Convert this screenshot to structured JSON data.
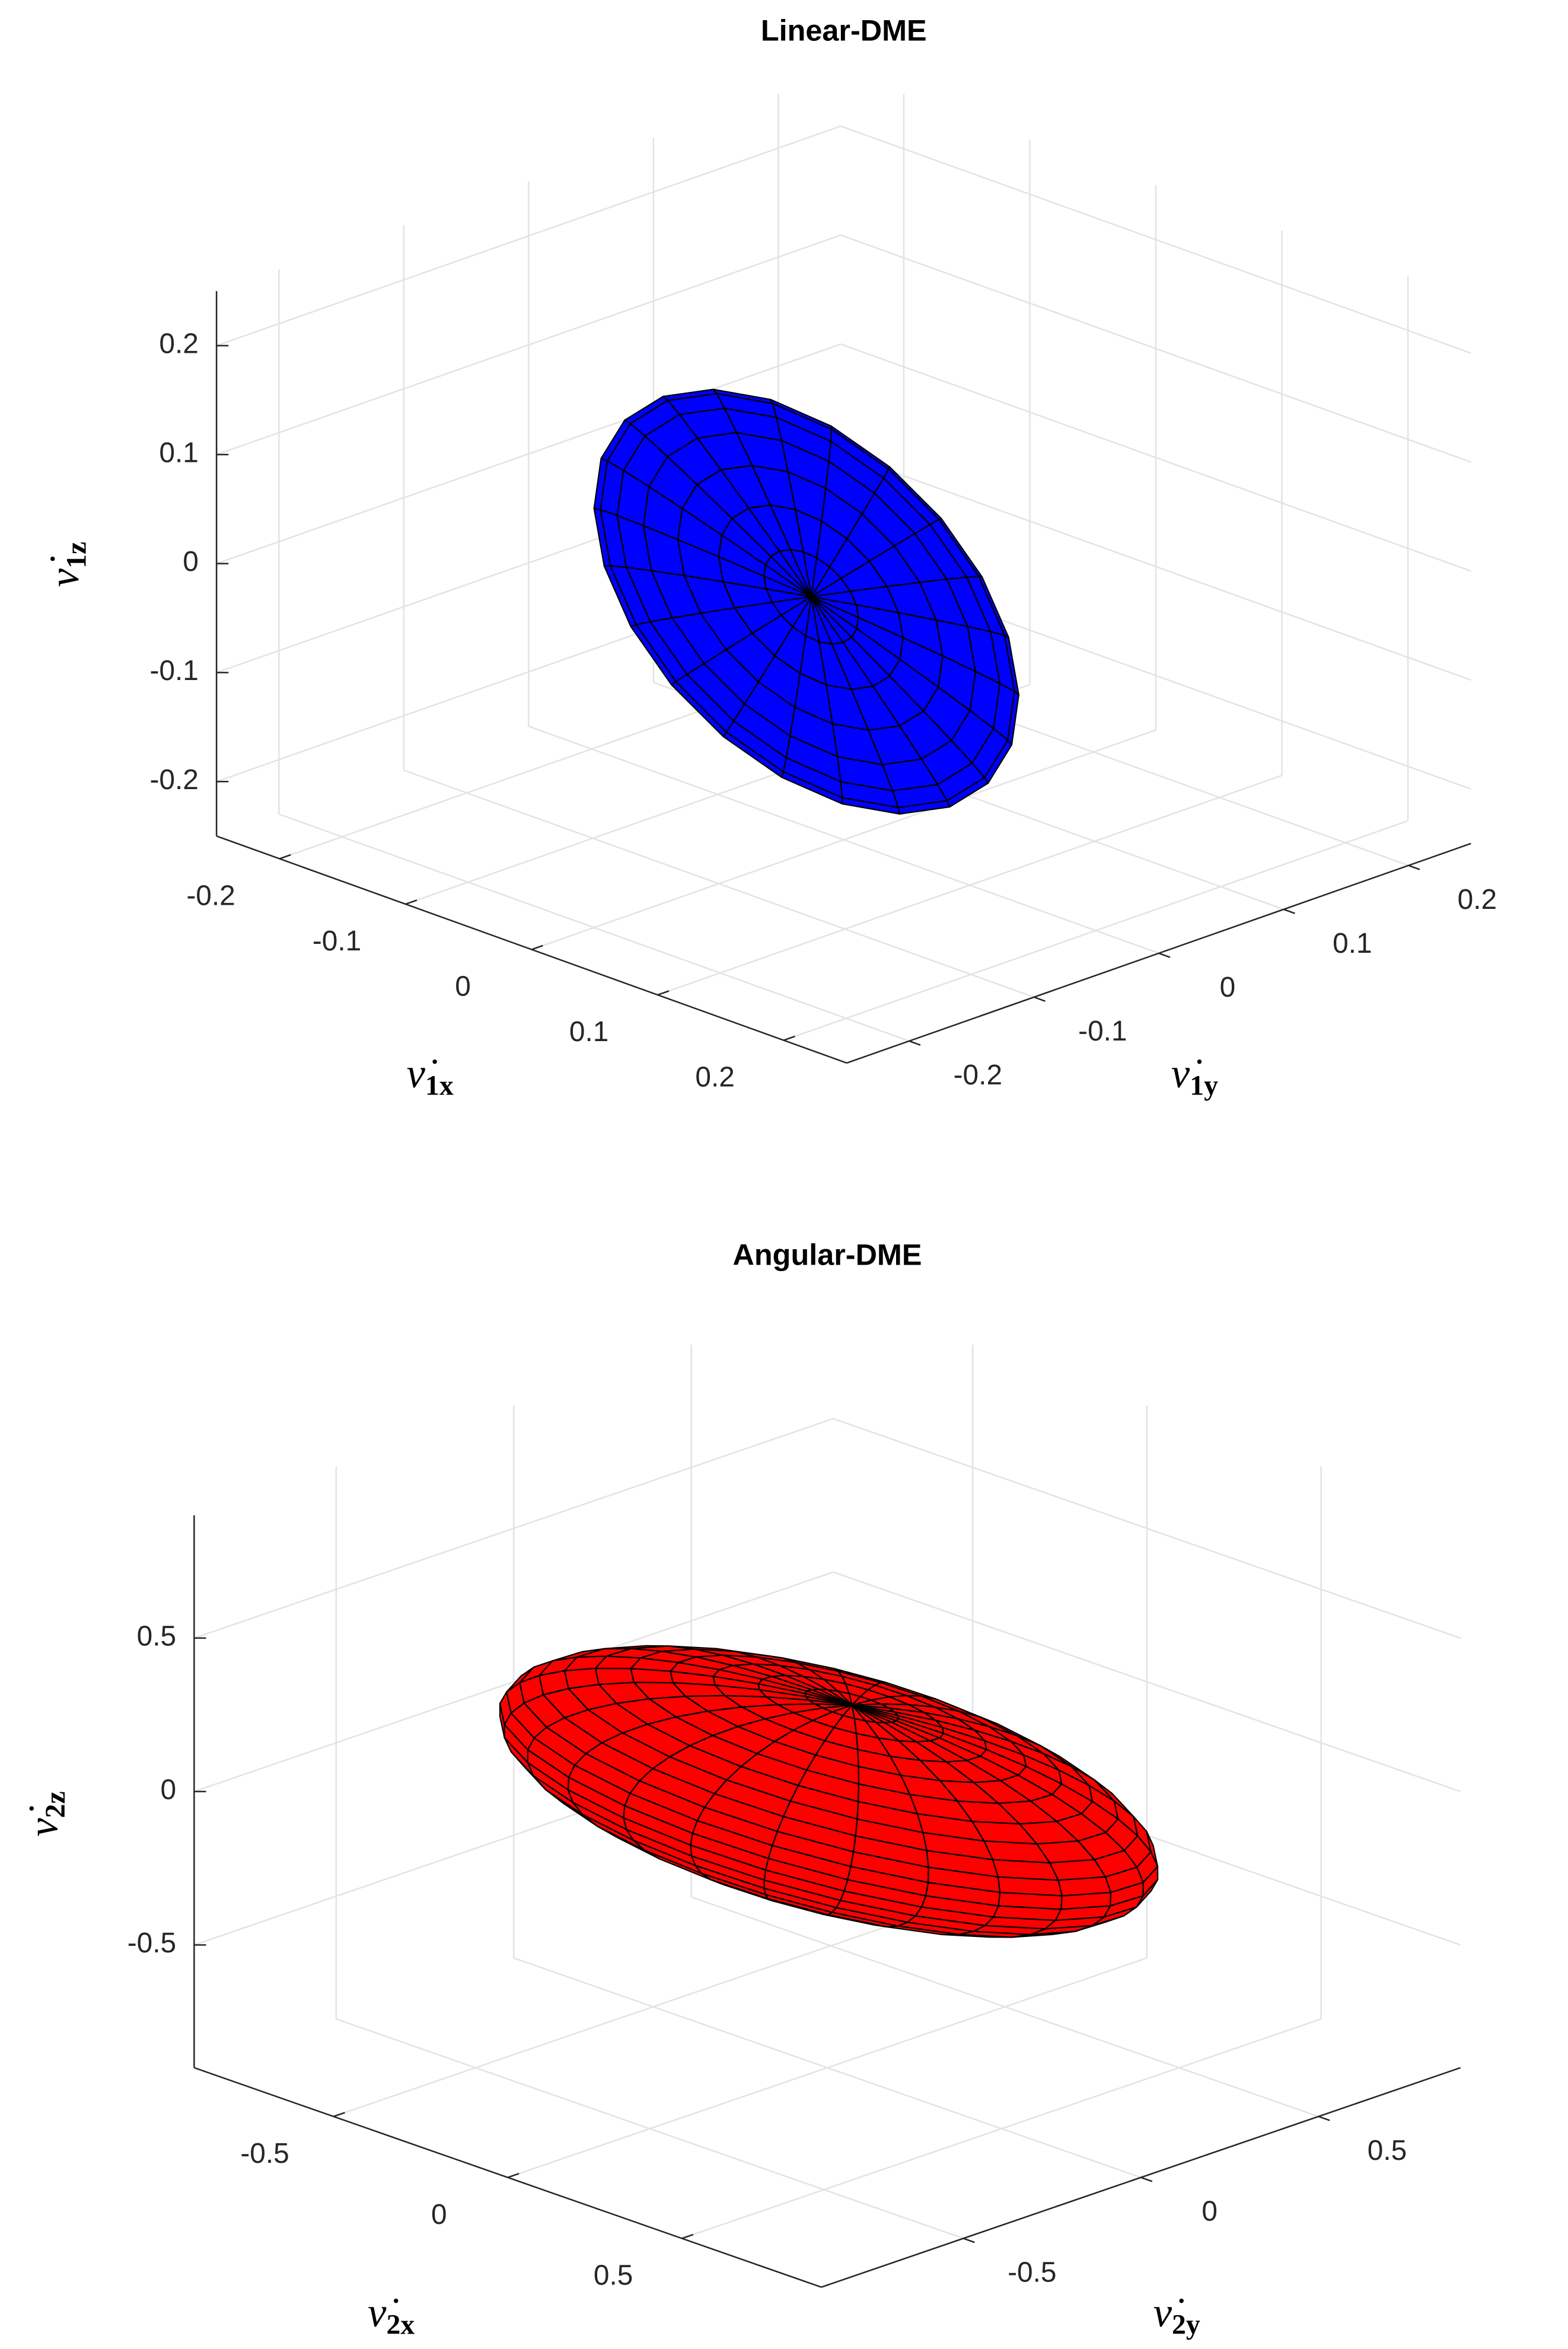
{
  "chart_data": [
    {
      "type": "surface",
      "title": "Linear-DME",
      "xlabel": {
        "base": "ν̇",
        "sub": "1x"
      },
      "ylabel": {
        "base": "ν̇",
        "sub": "1y"
      },
      "zlabel": {
        "base": "ν̇",
        "sub": "1z"
      },
      "xlim": [
        -0.25,
        0.25
      ],
      "ylim": [
        -0.25,
        0.25
      ],
      "zlim": [
        -0.25,
        0.25
      ],
      "xticks": [
        -0.2,
        -0.1,
        0,
        0.1,
        0.2
      ],
      "yticks": [
        -0.2,
        -0.1,
        0,
        0.1,
        0.2
      ],
      "zticks": [
        -0.2,
        -0.1,
        0,
        0.1,
        0.2
      ],
      "color": "#0000ff",
      "grid": true
    },
    {
      "type": "surface",
      "title": "Angular-DME",
      "xlabel": {
        "base": "ν̇",
        "sub": "2x"
      },
      "ylabel": {
        "base": "ν̇",
        "sub": "2y"
      },
      "zlabel": {
        "base": "ν̇",
        "sub": "2z"
      },
      "xlim": [
        -0.9,
        0.9
      ],
      "ylim": [
        -0.9,
        0.9
      ],
      "zlim": [
        -0.9,
        0.9
      ],
      "xticks": [
        -0.5,
        0,
        0.5
      ],
      "yticks": [
        -0.5,
        0,
        0.5
      ],
      "zticks": [
        -0.5,
        0,
        0.5
      ],
      "color": "#ff0000",
      "grid": true
    }
  ]
}
